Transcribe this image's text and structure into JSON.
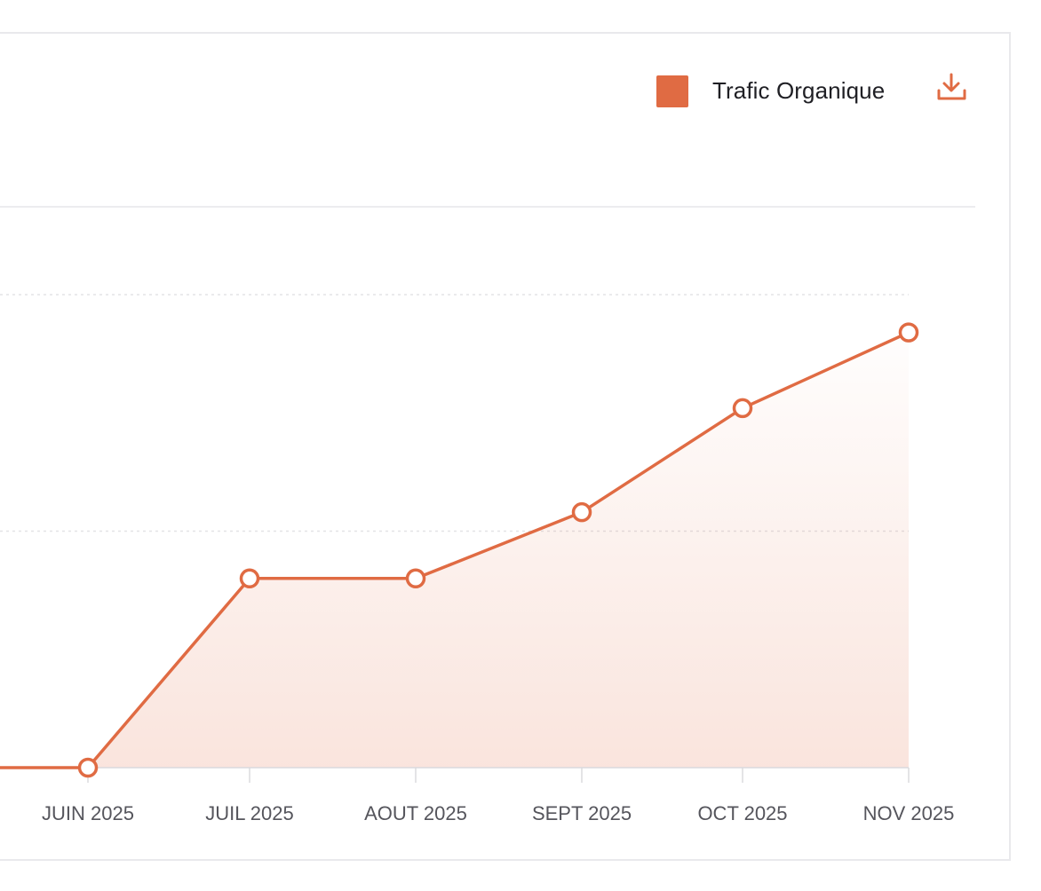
{
  "legend": {
    "label": "Trafic Organique",
    "color": "#e06b43"
  },
  "toolbar": {
    "download_icon": "download-icon"
  },
  "chart_data": {
    "type": "area",
    "categories": [
      "JUIN 2025",
      "JUIL 2025",
      "AOUT 2025",
      "SEPT 2025",
      "OCT 2025",
      "NOV 2025"
    ],
    "series": [
      {
        "name": "Trafic Organique",
        "values": [
          0,
          8,
          8,
          10.8,
          15.2,
          18.4
        ]
      }
    ],
    "ylim": [
      0,
      20
    ],
    "y_gridlines": [
      10,
      20
    ],
    "grid": true,
    "legend_position": "top-right",
    "line_color": "#e06b43",
    "fill_color": "#e06b43"
  }
}
